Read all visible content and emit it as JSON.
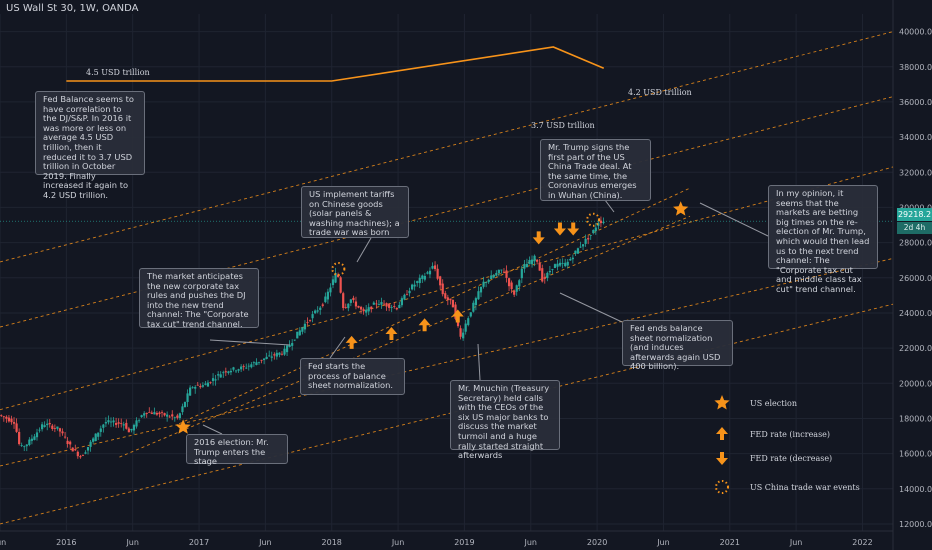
{
  "header": {
    "title": "US Wall St 30, 1W, OANDA"
  },
  "price_badge": {
    "value": "29218.2",
    "countdown": "2d 4h"
  },
  "annotations": {
    "fed_balance": "Fed Balance seems to have correlation to the DJ/S&P. In 2016 it was more or less on average 4.5 USD trillion, then it reduced it to 3.7 USD trillion in October 2019. Finally increased it again to 4.2 USD trillion.",
    "corporate_tax": "The market anticipates the new corporate tax rules and pushes the DJ into the new trend channel: The \"Corporate tax cut\" trend channel.",
    "tariffs": "US implement tariffs on Chinese goods (solar panels & washing machines); a trade war was born",
    "trade_deal": "Mr. Trump signs the first part of the US China Trade deal. At the same time, the Coronavirus emerges in Wuhan (China).",
    "opinion": "In my opinion, it seems that the markets are betting big times on the re-election of Mr. Trump, which would then lead us to the next trend channel: The \"Corporate tax cut and middle class tax cut\" trend channel.",
    "fed_normalization": "Fed starts the process of balance sheet normalization.",
    "fed_ends": "Fed ends balance sheet normalization (and induces afterwards again USD 400 billion).",
    "mnuchin": "Mr. Mnuchin (Treasury Secretary) held calls with the CEOs of the six US major banks to discuss the market turmoil and a huge rally started straight afterwards",
    "election_2016": "2016 election: Mr. Trump enters the stage"
  },
  "balance_labels": {
    "start": "4.5 USD trillion",
    "low": "3.7 USD trillion",
    "end": "4.2 USD trillion"
  },
  "legend": {
    "us_election": "US election",
    "fed_increase": "FED rate (increase)",
    "fed_decrease": "FED rate (decrease)",
    "trade_war": "US China trade war events"
  },
  "colors": {
    "background": "#131722",
    "up": "#26a69a",
    "down": "#ef5350",
    "orange": "#f7931a",
    "text": "#d1d4dc",
    "grid": "#1f2431"
  },
  "chart_data": {
    "type": "candlestick",
    "title": "US Wall St 30, 1W, OANDA",
    "ylim": [
      11600,
      41000
    ],
    "y_ticks": [
      12000,
      14000,
      16000,
      18000,
      20000,
      22000,
      24000,
      26000,
      28000,
      30000,
      32000,
      34000,
      36000,
      38000,
      40000
    ],
    "y_tick_labels": [
      "12000.0",
      "14000.0",
      "16000.0",
      "18000.0",
      "20000.0",
      "22000.0",
      "24000.0",
      "26000.0",
      "28000.0",
      "30000.0",
      "32000.0",
      "34000.0",
      "36000.0",
      "38000.0",
      "40000.0"
    ],
    "x_ticks": [
      2015.5,
      2016,
      2016.5,
      2017,
      2017.5,
      2018,
      2018.5,
      2019,
      2019.5,
      2020,
      2020.5,
      2021,
      2021.5,
      2022
    ],
    "x_tick_labels": [
      "Jun",
      "2016",
      "Jun",
      "2017",
      "Jun",
      "2018",
      "Jun",
      "2019",
      "Jun",
      "2020",
      "Jun",
      "2021",
      "Jun",
      "2022"
    ],
    "xlim": [
      2015.5,
      2022.23
    ],
    "last_price": 29218.2,
    "price_path": [
      [
        2015.5,
        18200
      ],
      [
        2015.62,
        17800
      ],
      [
        2015.66,
        16300
      ],
      [
        2015.72,
        16600
      ],
      [
        2015.84,
        17700
      ],
      [
        2015.95,
        17400
      ],
      [
        2016.05,
        16300
      ],
      [
        2016.12,
        15800
      ],
      [
        2016.2,
        16700
      ],
      [
        2016.3,
        17800
      ],
      [
        2016.45,
        17700
      ],
      [
        2016.48,
        17200
      ],
      [
        2016.6,
        18400
      ],
      [
        2016.75,
        18200
      ],
      [
        2016.85,
        18000
      ],
      [
        2016.9,
        18900
      ],
      [
        2016.95,
        19800
      ],
      [
        2017.05,
        19900
      ],
      [
        2017.2,
        20700
      ],
      [
        2017.35,
        20900
      ],
      [
        2017.5,
        21400
      ],
      [
        2017.65,
        21800
      ],
      [
        2017.8,
        23300
      ],
      [
        2017.95,
        24600
      ],
      [
        2018.05,
        26400
      ],
      [
        2018.1,
        24200
      ],
      [
        2018.15,
        24800
      ],
      [
        2018.25,
        24000
      ],
      [
        2018.35,
        24600
      ],
      [
        2018.5,
        24300
      ],
      [
        2018.6,
        25400
      ],
      [
        2018.72,
        26200
      ],
      [
        2018.78,
        26700
      ],
      [
        2018.85,
        25000
      ],
      [
        2018.92,
        24500
      ],
      [
        2018.98,
        22600
      ],
      [
        2019.05,
        24000
      ],
      [
        2019.15,
        25700
      ],
      [
        2019.3,
        26500
      ],
      [
        2019.38,
        25000
      ],
      [
        2019.45,
        26600
      ],
      [
        2019.55,
        27200
      ],
      [
        2019.6,
        25800
      ],
      [
        2019.68,
        26700
      ],
      [
        2019.78,
        26800
      ],
      [
        2019.88,
        27800
      ],
      [
        2019.97,
        28500
      ],
      [
        2020.02,
        29200
      ],
      [
        2020.05,
        29218.2
      ]
    ],
    "balance_sheet_trillion_usd": {
      "x": [
        2016,
        2018,
        2019.67,
        2020.05
      ],
      "y": [
        4.5,
        4.5,
        3.7,
        4.2
      ]
    },
    "trend_channels": [
      {
        "name": "",
        "points": [
          [
            2015.5,
            15300
          ],
          [
            2022.23,
            27100
          ]
        ]
      },
      {
        "name": "",
        "points": [
          [
            2015.5,
            18500
          ],
          [
            2022.23,
            32300
          ]
        ]
      },
      {
        "name": "",
        "points": [
          [
            2015.5,
            23200
          ],
          [
            2022.23,
            36300
          ]
        ]
      },
      {
        "name": "",
        "points": [
          [
            2015.5,
            26900
          ],
          [
            2022.23,
            40000
          ]
        ]
      },
      {
        "name": "",
        "points": [
          [
            2015.5,
            12000
          ],
          [
            2022.23,
            24500
          ]
        ]
      },
      {
        "name": "",
        "points": [
          [
            2016.85,
            17700
          ],
          [
            2020.7,
            31100
          ]
        ]
      },
      {
        "name": "",
        "points": [
          [
            2016.4,
            15800
          ],
          [
            2020.7,
            29500
          ]
        ]
      }
    ],
    "events": {
      "us_election": [
        [
          2016.88,
          17500
        ],
        [
          2020.63,
          29900
        ]
      ],
      "fed_increase": [
        [
          2018.15,
          22300
        ],
        [
          2018.45,
          22800
        ],
        [
          2018.7,
          23300
        ],
        [
          2018.95,
          23800
        ]
      ],
      "fed_decrease": [
        [
          2019.56,
          28300
        ],
        [
          2019.72,
          28800
        ],
        [
          2019.82,
          28800
        ]
      ],
      "trade_war": [
        [
          2018.05,
          26500
        ],
        [
          2019.97,
          29300
        ]
      ]
    }
  }
}
